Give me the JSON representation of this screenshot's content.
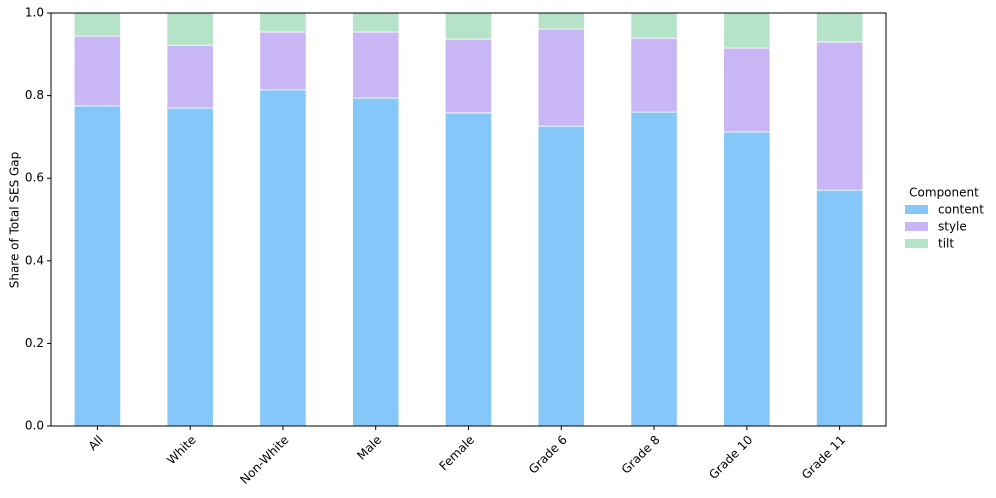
{
  "chart_data": {
    "type": "stacked_bar",
    "y_label": "Share of Total SES Gap",
    "legend_title": "Component",
    "legend_position": "right",
    "categories": [
      "All",
      "White",
      "Non-White",
      "Male",
      "Female",
      "Grade 6",
      "Grade 8",
      "Grade 10",
      "Grade 11"
    ],
    "series": [
      {
        "name": "content",
        "color": "#85c7f8",
        "values": [
          0.775,
          0.77,
          0.814,
          0.794,
          0.758,
          0.726,
          0.76,
          0.712,
          0.571
        ]
      },
      {
        "name": "style",
        "color": "#c8b6f5",
        "values": [
          0.169,
          0.152,
          0.14,
          0.16,
          0.179,
          0.235,
          0.179,
          0.203,
          0.359
        ]
      },
      {
        "name": "tilt",
        "color": "#b5e3c7",
        "values": [
          0.056,
          0.078,
          0.046,
          0.046,
          0.063,
          0.039,
          0.061,
          0.085,
          0.07
        ]
      }
    ],
    "ylim": [
      0,
      1
    ],
    "yticks": [
      {
        "value": 0,
        "label": "0.0"
      },
      0.2,
      0.4,
      0.6,
      0.8,
      {
        "value": 1,
        "label": "1.0"
      }
    ],
    "grid": false
  }
}
